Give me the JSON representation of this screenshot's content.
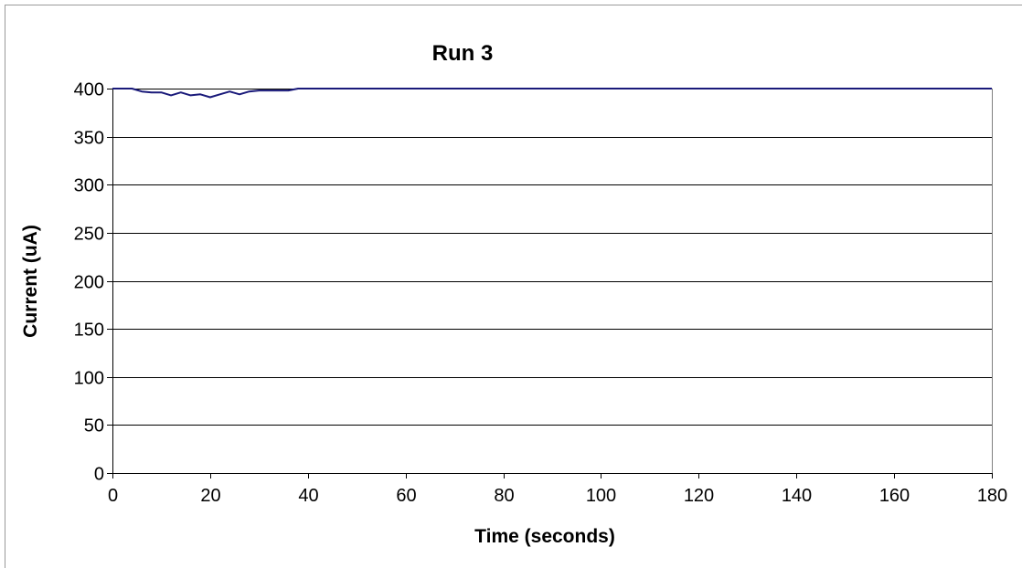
{
  "chart_data": {
    "type": "line",
    "title": "Run 3",
    "xlabel": "Time (seconds)",
    "ylabel": "Current (uA)",
    "xlim": [
      0,
      180
    ],
    "ylim": [
      0,
      400
    ],
    "xticks": [
      0,
      20,
      40,
      60,
      80,
      100,
      120,
      140,
      160,
      180
    ],
    "yticks": [
      0,
      50,
      100,
      150,
      200,
      250,
      300,
      350,
      400
    ],
    "grid": "horizontal",
    "legend": "none",
    "series": [
      {
        "color": "#1a1a7a",
        "x": [
          0,
          2,
          4,
          6,
          8,
          10,
          12,
          14,
          16,
          18,
          20,
          22,
          24,
          26,
          28,
          30,
          32,
          34,
          36,
          38,
          40,
          60,
          80,
          100,
          120,
          140,
          160,
          180
        ],
        "y": [
          400,
          400,
          400,
          397,
          396,
          396,
          393,
          396,
          393,
          394,
          391,
          394,
          397,
          394,
          397,
          398,
          398,
          398,
          398,
          400,
          400,
          400,
          400,
          400,
          400,
          400,
          400,
          400
        ]
      }
    ]
  }
}
